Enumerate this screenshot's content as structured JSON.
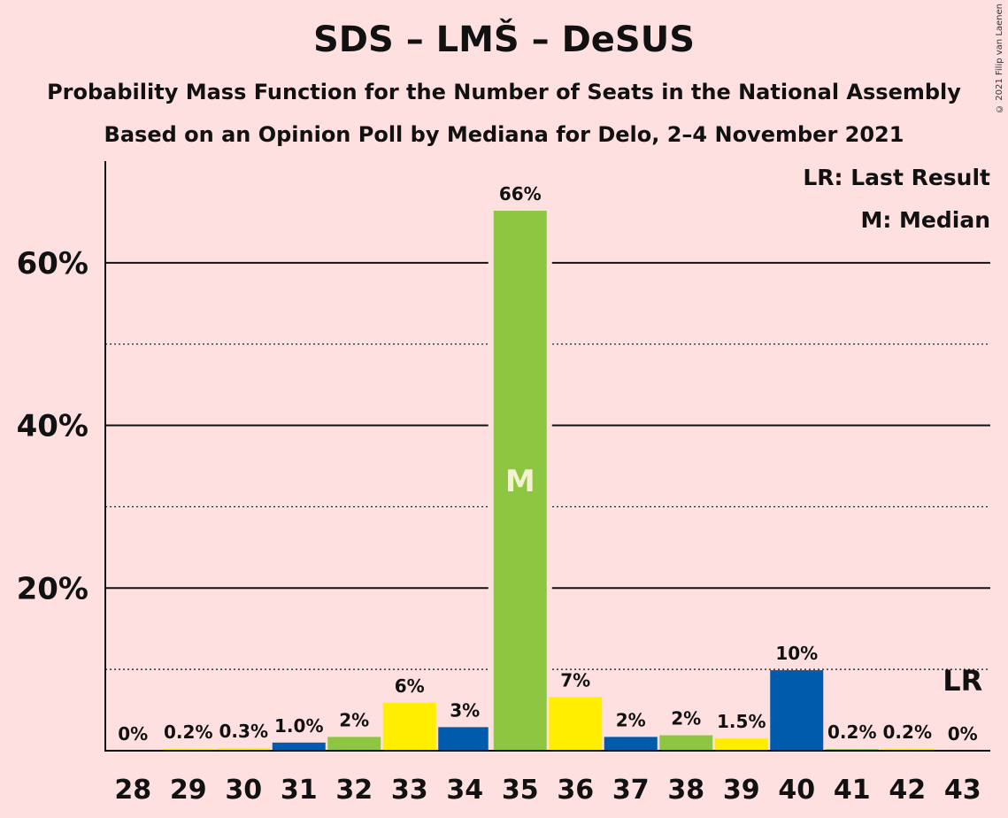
{
  "title": "SDS – LMŠ – DeSUS",
  "subtitle1": "Probability Mass Function for the Number of Seats in the National Assembly",
  "subtitle2": "Based on an Opinion Poll by Mediana for Delo, 2–4 November 2021",
  "copyright": "© 2021 Filip van Laenen",
  "legend": {
    "last_result": "LR: Last Result",
    "median": "M: Median"
  },
  "colors": {
    "background": "#ffe0e0",
    "green": "#8dc641",
    "yellow": "#ffee00",
    "blue": "#005bac"
  },
  "chart_data": {
    "type": "bar",
    "categories": [
      "28",
      "29",
      "30",
      "31",
      "32",
      "33",
      "34",
      "35",
      "36",
      "37",
      "38",
      "39",
      "40",
      "41",
      "42",
      "43"
    ],
    "values": [
      0,
      0.2,
      0.3,
      1.0,
      1.7,
      5.9,
      2.9,
      66.4,
      6.6,
      1.7,
      1.9,
      1.5,
      9.9,
      0.2,
      0.2,
      0
    ],
    "labels": [
      "0%",
      "0.2%",
      "0.3%",
      "1.0%",
      "2%",
      "6%",
      "3%",
      "66%",
      "7%",
      "2%",
      "2%",
      "1.5%",
      "10%",
      "0.2%",
      "0.2%",
      "0%"
    ],
    "bar_colors": [
      "green",
      "yellow",
      "yellow",
      "blue",
      "green",
      "yellow",
      "blue",
      "green",
      "yellow",
      "blue",
      "green",
      "yellow",
      "blue",
      "green",
      "yellow",
      "blue"
    ],
    "y_ticks": [
      {
        "value": 20,
        "label": "20%"
      },
      {
        "value": 40,
        "label": "40%"
      },
      {
        "value": 60,
        "label": "60%"
      }
    ],
    "minor_gridlines": [
      10,
      30,
      50
    ],
    "ylim": [
      0,
      72.5
    ],
    "median_seat": "35",
    "median_marker": "M",
    "last_result_seat": "43",
    "last_result_marker": "LR",
    "legend_position": "top-right"
  }
}
